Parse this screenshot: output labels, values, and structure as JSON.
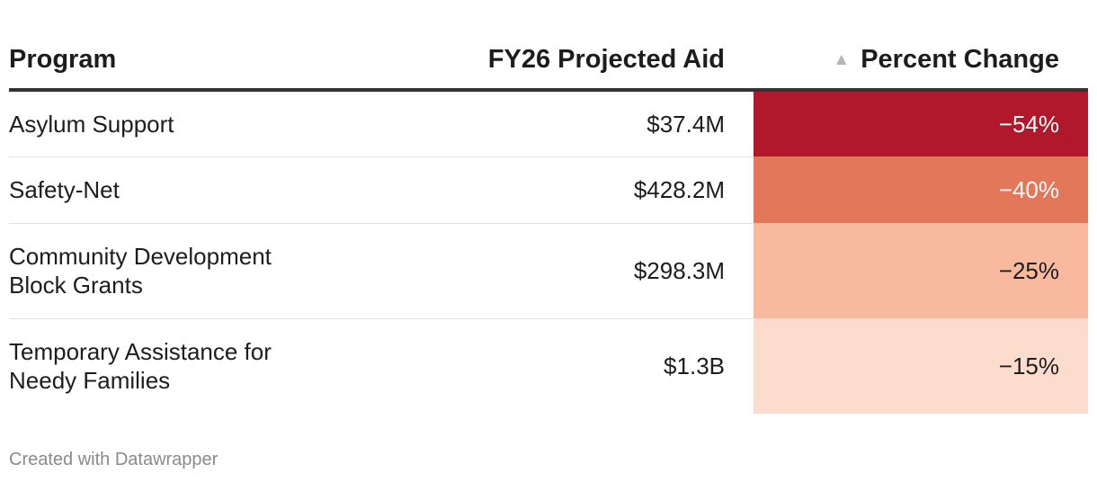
{
  "chart_data": {
    "type": "table",
    "columns": [
      "Program",
      "FY26 Projected Aid",
      "Percent Change"
    ],
    "sorted_column": "Percent Change",
    "sort_direction": "ascending",
    "rows": [
      {
        "program": "Asylum Support",
        "aid": "$37.4M",
        "pct_label": "−54%",
        "pct_value": -54,
        "color": "#b2182b"
      },
      {
        "program": "Safety-Net",
        "aid": "$428.2M",
        "pct_label": "−40%",
        "pct_value": -40,
        "color": "#e2775a"
      },
      {
        "program": "Community Development\nBlock Grants",
        "aid": "$298.3M",
        "pct_label": "−25%",
        "pct_value": -25,
        "color": "#f8b99e"
      },
      {
        "program": "Temporary Assistance for\nNeedy Families",
        "aid": "$1.3B",
        "pct_label": "−15%",
        "pct_value": -15,
        "color": "#fcddcd"
      }
    ]
  },
  "header": {
    "program": "Program",
    "aid": "FY26 Projected Aid",
    "pct": "Percent Change",
    "sort_icon": "▲"
  },
  "footer": {
    "credit": "Created with Datawrapper"
  }
}
